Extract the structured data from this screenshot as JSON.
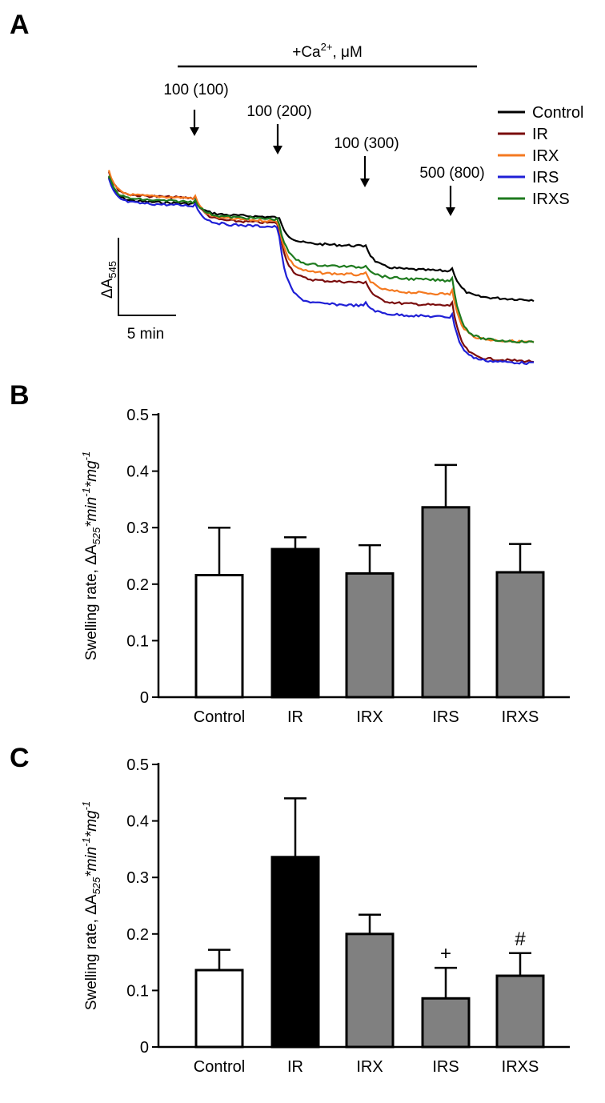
{
  "panels": {
    "a": {
      "letter": "A"
    },
    "b": {
      "letter": "B"
    },
    "c": {
      "letter": "C"
    }
  },
  "chart_data": [
    {
      "type": "line",
      "panel": "A",
      "title": "",
      "ca_bar_label_prefix": "+Ca",
      "ca_bar_label_sup": "2+",
      "ca_bar_label_suffix": ", μM",
      "additions": [
        "100 (100)",
        "100 (200)",
        "100 (300)",
        "500 (800)"
      ],
      "scale_bar": {
        "y_label": "ΔA",
        "y_label_sub": "545",
        "x_label": "5 min"
      },
      "series": [
        {
          "name": "Control",
          "color": "#000000",
          "levels": [
            0.25,
            0.32,
            0.47,
            0.6,
            0.75
          ]
        },
        {
          "name": "IR",
          "color": "#7a0c0c",
          "levels": [
            0.22,
            0.35,
            0.66,
            0.78,
            1.07
          ]
        },
        {
          "name": "IRX",
          "color": "#f47920",
          "levels": [
            0.22,
            0.34,
            0.62,
            0.72,
            0.97
          ]
        },
        {
          "name": "IRS",
          "color": "#1f1fd6",
          "levels": [
            0.26,
            0.37,
            0.78,
            0.84,
            1.08
          ]
        },
        {
          "name": "IRXS",
          "color": "#1e7a1e",
          "levels": [
            0.24,
            0.33,
            0.58,
            0.65,
            0.97
          ]
        }
      ]
    },
    {
      "type": "bar",
      "panel": "B",
      "title": "",
      "ylabel": "Swelling rate, ΔA",
      "ylabel_sub": "525",
      "ylabel_units": "*min",
      "ylabel_units_sup": "-1",
      "ylabel_units2": "*mg",
      "ylabel_units2_sup": "-1",
      "categories": [
        "Control",
        "IR",
        "IRX",
        "IRS",
        "IRXS"
      ],
      "values": [
        0.216,
        0.262,
        0.219,
        0.336,
        0.221
      ],
      "errors": [
        0.084,
        0.021,
        0.05,
        0.075,
        0.05
      ],
      "colors": [
        "#ffffff",
        "#000000",
        "#808080",
        "#808080",
        "#808080"
      ],
      "ylim": [
        0,
        0.5
      ],
      "yticks": [
        "0",
        "0.1",
        "0.2",
        "0.3",
        "0.4",
        "0.5"
      ],
      "annotations": [
        "",
        "",
        "",
        "",
        ""
      ]
    },
    {
      "type": "bar",
      "panel": "C",
      "title": "",
      "ylabel": "Swelling rate, ΔA",
      "ylabel_sub": "525",
      "ylabel_units": "*min",
      "ylabel_units_sup": "-1",
      "ylabel_units2": "*mg",
      "ylabel_units2_sup": "-1",
      "categories": [
        "Control",
        "IR",
        "IRX",
        "IRS",
        "IRXS"
      ],
      "values": [
        0.136,
        0.336,
        0.2,
        0.086,
        0.126
      ],
      "errors": [
        0.036,
        0.104,
        0.034,
        0.054,
        0.04
      ],
      "colors": [
        "#ffffff",
        "#000000",
        "#808080",
        "#808080",
        "#808080"
      ],
      "ylim": [
        0,
        0.5
      ],
      "yticks": [
        "0",
        "0.1",
        "0.2",
        "0.3",
        "0.4",
        "0.5"
      ],
      "annotations": [
        "",
        "",
        "",
        "+",
        "#"
      ]
    }
  ]
}
